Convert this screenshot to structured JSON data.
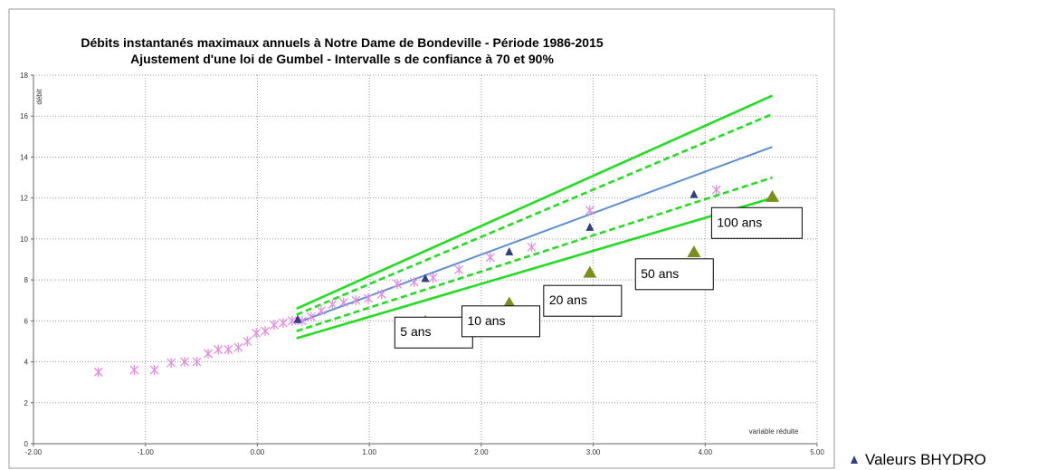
{
  "chart_data": {
    "type": "scatter",
    "title": "Débits instantanés maximaux annuels à Notre Dame de Bondeville  - Période 1986-2015",
    "subtitle": "Ajustement d'une loi de Gumbel - Intervalle s de confiance à 70 et 90%",
    "xlabel": "variable réduite",
    "ylabel": "débit",
    "xlim": [
      -2,
      5
    ],
    "ylim": [
      0,
      18
    ],
    "x_ticks": [
      "-2.00",
      "-1.00",
      "0.00",
      "1.00",
      "2.00",
      "3.00",
      "4.00",
      "5.00"
    ],
    "y_ticks": [
      "0",
      "2",
      "4",
      "6",
      "8",
      "10",
      "12",
      "14",
      "16",
      "18"
    ],
    "grid": true,
    "colors": {
      "observed": "#e58ce0",
      "bhydro": "#2f3f80",
      "fit": "#5b8fd0",
      "ci": "#22dd22",
      "return": "#7a8f1e"
    },
    "series": [
      {
        "kind": "observed",
        "marker": "star",
        "x": [
          -1.42,
          -1.1,
          -0.92,
          -0.77,
          -0.65,
          -0.54,
          -0.44,
          -0.35,
          -0.26,
          -0.17,
          -0.09,
          -0.01,
          0.07,
          0.15,
          0.23,
          0.31,
          0.4,
          0.48,
          0.57,
          0.67,
          0.77,
          0.88,
          0.99,
          1.11,
          1.25,
          1.4,
          1.57,
          1.8,
          2.08,
          2.45,
          2.97,
          4.1
        ],
        "y": [
          3.5,
          3.6,
          3.6,
          3.95,
          4.0,
          4.0,
          4.4,
          4.6,
          4.6,
          4.7,
          5.0,
          5.4,
          5.5,
          5.8,
          5.9,
          6.0,
          6.0,
          6.2,
          6.5,
          6.8,
          6.9,
          7.0,
          7.1,
          7.3,
          7.8,
          7.9,
          8.1,
          8.5,
          9.1,
          9.6,
          11.4,
          12.4
        ]
      },
      {
        "name": "Valeurs BHYDRO",
        "kind": "bhydro",
        "marker": "triangle",
        "x": [
          0.36,
          1.5,
          2.25,
          2.97,
          3.9
        ],
        "y": [
          6.1,
          8.1,
          9.4,
          10.6,
          12.2
        ]
      },
      {
        "kind": "fit",
        "line": "solid",
        "x": [
          0.35,
          4.6
        ],
        "y": [
          5.9,
          14.5
        ]
      },
      {
        "kind": "ci90_upper",
        "line": "solid",
        "x": [
          0.35,
          4.6
        ],
        "y": [
          6.6,
          17.0
        ]
      },
      {
        "kind": "ci70_upper",
        "line": "dashed",
        "x": [
          0.35,
          4.6
        ],
        "y": [
          6.3,
          16.1
        ]
      },
      {
        "kind": "ci70_lower",
        "line": "dashed",
        "x": [
          0.35,
          4.6
        ],
        "y": [
          5.5,
          13.0
        ]
      },
      {
        "kind": "ci90_lower",
        "line": "solid",
        "x": [
          0.35,
          4.6
        ],
        "y": [
          5.15,
          12.0
        ]
      },
      {
        "kind": "return_periods",
        "marker": "triangle",
        "x": [
          1.5,
          2.25,
          2.97,
          3.9,
          4.6
        ],
        "y": [
          6.0,
          6.9,
          8.4,
          9.4,
          12.1
        ]
      }
    ],
    "annotations": [
      {
        "text": "5 ans",
        "x": 1.47,
        "y": 5.65
      },
      {
        "text": "10 ans",
        "x": 2.07,
        "y": 6.2
      },
      {
        "text": "20 ans",
        "x": 2.8,
        "y": 7.2
      },
      {
        "text": "50 ans",
        "x": 3.62,
        "y": 8.5
      },
      {
        "text": "100 ans",
        "x": 4.3,
        "y": 11.0
      }
    ],
    "legend": {
      "entries": [
        "Valeurs BHYDRO"
      ],
      "placement": "bottom-right"
    }
  }
}
